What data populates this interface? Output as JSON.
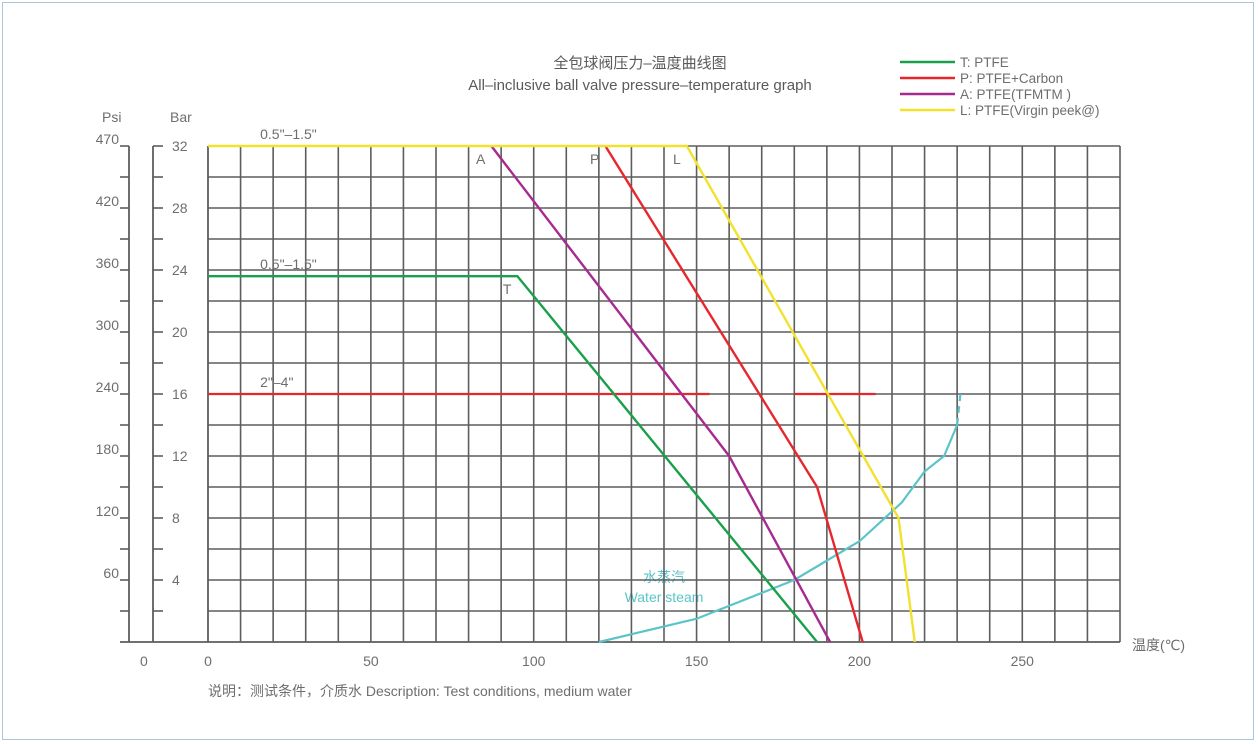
{
  "chart_data": {
    "type": "line",
    "title": "全包球阀压力–温度曲线图",
    "subtitle": "All–inclusive ball valve pressure–temperature graph",
    "xlabel": "温度(℃)",
    "ylabel_psi": "Psi",
    "ylabel_bar": "Bar",
    "xlim": [
      0,
      280
    ],
    "ylim": [
      0,
      32
    ],
    "x_ticks": [
      0,
      50,
      100,
      150,
      200,
      250
    ],
    "bar_ticks": [
      4,
      8,
      12,
      16,
      20,
      24,
      28,
      32
    ],
    "psi_ticks": [
      {
        "bar": 4,
        "label": "60"
      },
      {
        "bar": 8,
        "label": "120"
      },
      {
        "bar": 12,
        "label": "180"
      },
      {
        "bar": 16,
        "label": "240"
      },
      {
        "bar": 20,
        "label": "300"
      },
      {
        "bar": 24,
        "label": "360"
      },
      {
        "bar": 28,
        "label": "420"
      },
      {
        "bar": 32,
        "label": "470"
      }
    ],
    "psi_zero_label": "0",
    "grid": true,
    "legend_position": "top-right",
    "series": [
      {
        "name": "T: PTFE",
        "color": "#1aa04a",
        "x": [
          0,
          95,
          187
        ],
        "y": [
          23.6,
          23.6,
          0
        ],
        "marker": "T",
        "marker_at": [
          95,
          23.6
        ]
      },
      {
        "name": "P: PTFE+Carbon",
        "color": "#e8262d",
        "x": [
          122,
          187,
          201
        ],
        "y": [
          32,
          10,
          0
        ],
        "marker": "P",
        "marker_at": [
          122,
          32
        ]
      },
      {
        "name": "A: PTFE(TFMTM )",
        "color": "#a62a90",
        "x": [
          87,
          160,
          191
        ],
        "y": [
          32,
          12,
          0
        ],
        "marker": "A",
        "marker_at": [
          87,
          32
        ]
      },
      {
        "name": "L: PTFE(Virgin peek@)",
        "color": "#f2e22e",
        "x": [
          0,
          147,
          212,
          217
        ],
        "y": [
          32,
          32,
          8,
          0
        ],
        "marker": "L",
        "marker_at": [
          147,
          32
        ]
      }
    ],
    "pressure_line": {
      "color": "#e8262d",
      "y": 16,
      "segments": [
        [
          0,
          154
        ],
        [
          180,
          205
        ]
      ]
    },
    "water_steam": {
      "label_cn": "水蒸汽",
      "label_en": "Water steam",
      "color": "#5bc4c8",
      "x": [
        120,
        150,
        180,
        200,
        213,
        220,
        226,
        230,
        231
      ],
      "y": [
        0,
        1.5,
        4,
        6.5,
        9,
        11,
        12,
        14,
        16
      ],
      "dashed_from_x": 230
    },
    "annotations": [
      {
        "text": "0.5\"–1.5\"",
        "x": 16,
        "y": 32
      },
      {
        "text": "0.5\"–1.5\"",
        "x": 16,
        "y": 23.6
      },
      {
        "text": "2\"–4\"",
        "x": 16,
        "y": 16
      }
    ],
    "description": "说明：测试条件，介质水   Description: Test conditions, medium water"
  }
}
